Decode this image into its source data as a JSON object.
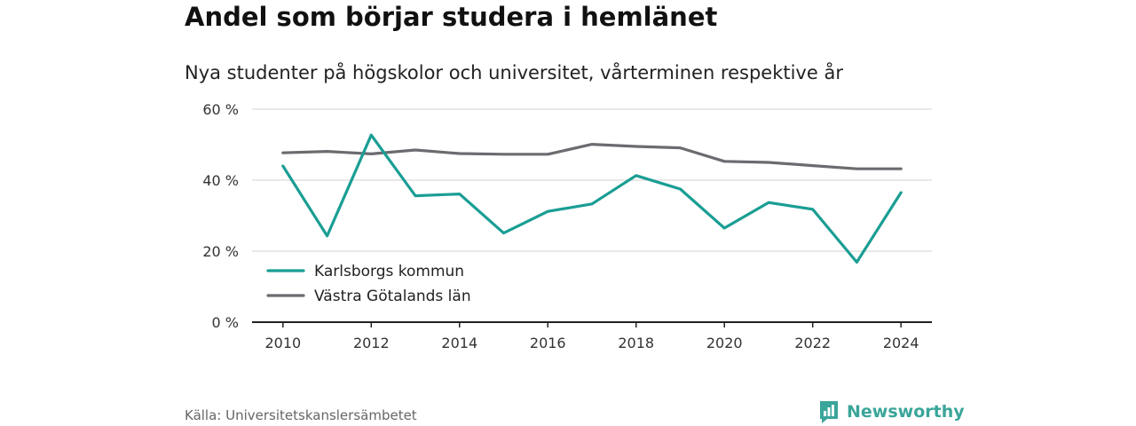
{
  "title": "Andel som börjar studera i hemlänet",
  "subtitle": "Nya studenter på högskolor och universitet, vårterminen respektive år",
  "source": "Källa: Universitetskanslersämbetet",
  "brand": "Newsworthy",
  "colors": {
    "series1": "#1a9e94",
    "series2": "#6b6b70",
    "grid": "#d9d9d9",
    "axis": "#222222",
    "brand": "#3aa59a"
  },
  "chart_data": {
    "type": "line",
    "x": [
      2010,
      2011,
      2012,
      2013,
      2014,
      2015,
      2016,
      2017,
      2018,
      2019,
      2020,
      2021,
      2022,
      2023,
      2024
    ],
    "x_ticks": [
      2010,
      2012,
      2014,
      2016,
      2018,
      2020,
      2022,
      2024
    ],
    "y_ticks": [
      0,
      20,
      40,
      60
    ],
    "y_tick_labels": [
      "0 %",
      "20 %",
      "40 %",
      "60 %"
    ],
    "ylim": [
      0,
      60
    ],
    "xlim": [
      2009.3,
      2024.7
    ],
    "grid": true,
    "legend_position": "bottom-left",
    "series": [
      {
        "name": "Karlsborgs kommun",
        "color": "#1a9e94",
        "values": [
          44.0,
          24.3,
          52.7,
          35.6,
          36.1,
          25.1,
          31.2,
          33.3,
          41.3,
          37.5,
          26.5,
          33.7,
          31.8,
          16.9,
          36.5
        ]
      },
      {
        "name": "Västra Götalands län",
        "color": "#6b6b70",
        "values": [
          47.7,
          48.1,
          47.4,
          48.5,
          47.5,
          47.3,
          47.3,
          50.1,
          49.5,
          49.1,
          45.3,
          45.0,
          44.1,
          43.2,
          43.2
        ]
      }
    ]
  }
}
